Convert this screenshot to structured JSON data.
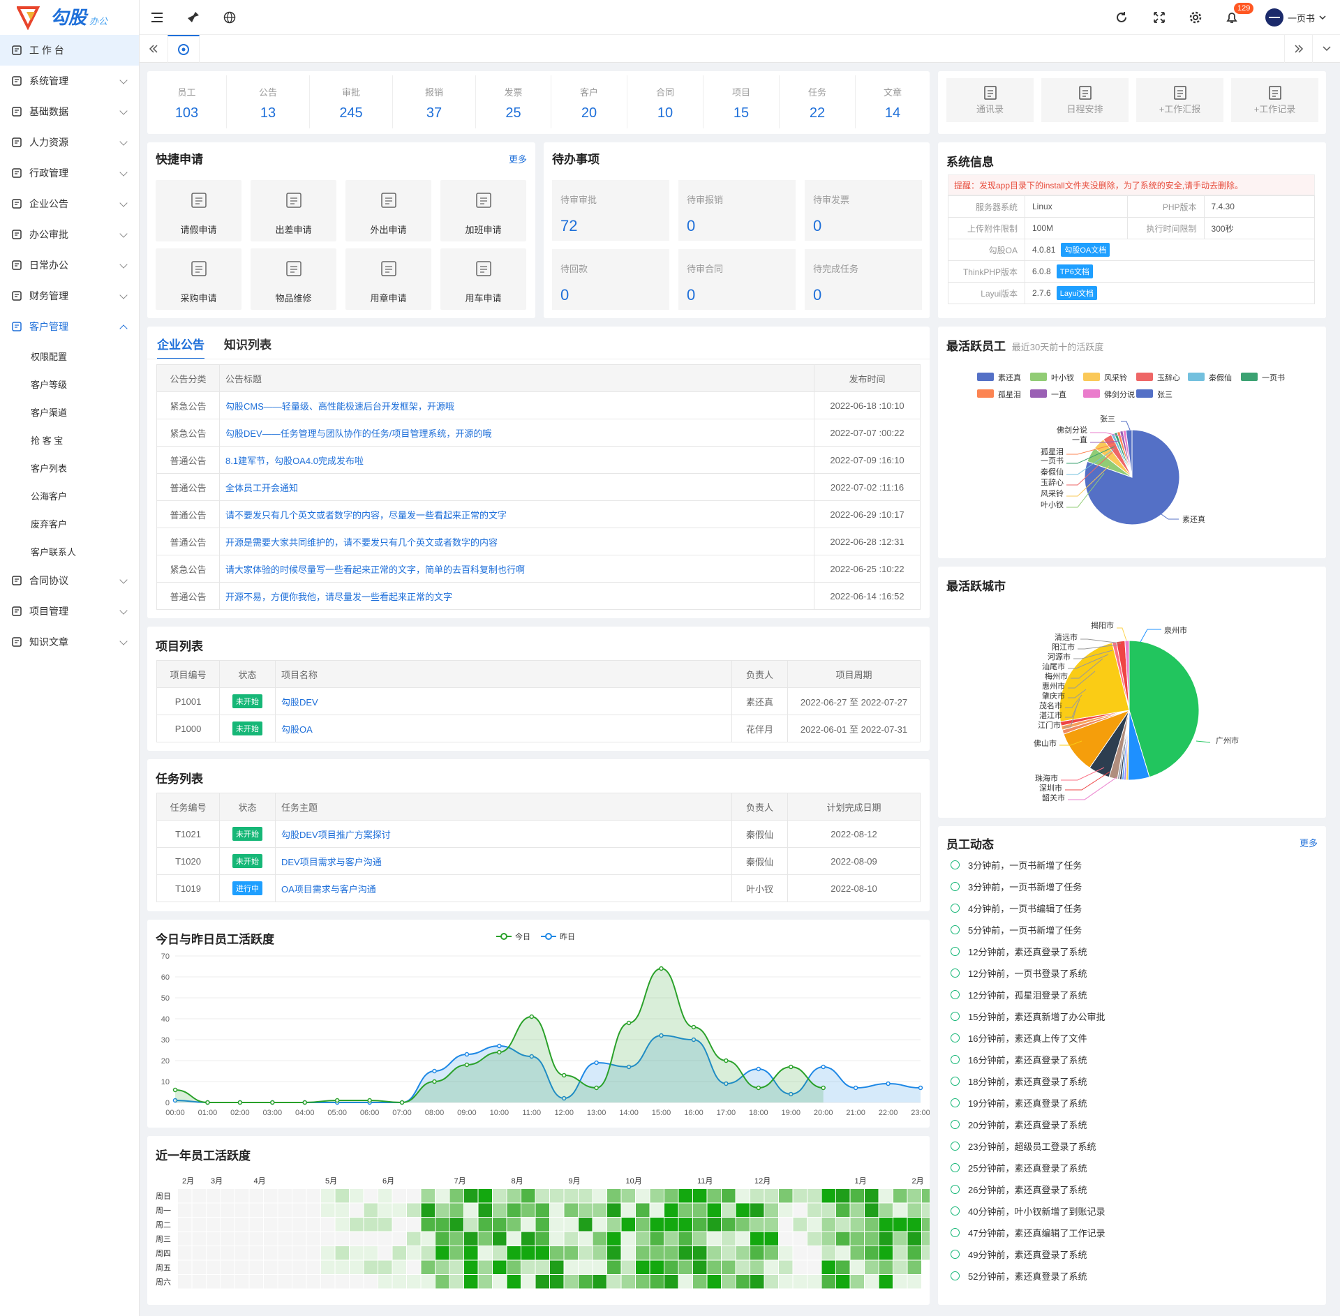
{
  "app": {
    "logo_text": "勾股",
    "logo_sub": "办公",
    "logo_mark": "OA"
  },
  "sidebar": {
    "items": [
      {
        "label": "工 作 台",
        "icon": "dashboard-icon"
      },
      {
        "label": "系统管理",
        "icon": "settings-icon"
      },
      {
        "label": "基础数据",
        "icon": "database-icon"
      },
      {
        "label": "人力资源",
        "icon": "person-icon"
      },
      {
        "label": "行政管理",
        "icon": "flag-icon"
      },
      {
        "label": "企业公告",
        "icon": "bell-icon"
      },
      {
        "label": "办公审批",
        "icon": "approve-icon"
      },
      {
        "label": "日常办公",
        "icon": "calendar-icon"
      },
      {
        "label": "财务管理",
        "icon": "finance-icon"
      },
      {
        "label": "客户管理",
        "icon": "customer-icon"
      },
      {
        "label": "合同协议",
        "icon": "contract-icon"
      },
      {
        "label": "项目管理",
        "icon": "project-icon"
      },
      {
        "label": "知识文章",
        "icon": "article-icon"
      }
    ],
    "submenu": [
      "权限配置",
      "客户等级",
      "客户渠道",
      "抢 客 宝",
      "客户列表",
      "公海客户",
      "废弃客户",
      "客户联系人"
    ]
  },
  "topbar": {
    "badge": "129",
    "user": "一页书"
  },
  "stats": [
    {
      "label": "员工",
      "value": "103"
    },
    {
      "label": "公告",
      "value": "13"
    },
    {
      "label": "审批",
      "value": "245"
    },
    {
      "label": "报销",
      "value": "37"
    },
    {
      "label": "发票",
      "value": "25"
    },
    {
      "label": "客户",
      "value": "20"
    },
    {
      "label": "合同",
      "value": "10"
    },
    {
      "label": "项目",
      "value": "15"
    },
    {
      "label": "任务",
      "value": "22"
    },
    {
      "label": "文章",
      "value": "14"
    }
  ],
  "tools": [
    "通讯录",
    "日程安排",
    "+工作汇报",
    "+工作记录"
  ],
  "quick": {
    "title": "快捷申请",
    "more": "更多",
    "items": [
      "请假申请",
      "出差申请",
      "外出申请",
      "加班申请",
      "采购申请",
      "物品维修",
      "用章申请",
      "用车申请"
    ]
  },
  "todo": {
    "title": "待办事项",
    "items": [
      {
        "label": "待审审批",
        "value": "72"
      },
      {
        "label": "待审报销",
        "value": "0"
      },
      {
        "label": "待审发票",
        "value": "0"
      },
      {
        "label": "待回款",
        "value": "0"
      },
      {
        "label": "待审合同",
        "value": "0"
      },
      {
        "label": "待完成任务",
        "value": "0"
      }
    ]
  },
  "sysinfo": {
    "title": "系统信息",
    "tip": "提醒：发现app目录下的install文件夹没删除，为了系统的安全,请手动去删除。",
    "rows": [
      [
        "服务器系统",
        "Linux",
        "PHP版本",
        "7.4.30"
      ],
      [
        "上传附件限制",
        "100M",
        "执行时间限制",
        "300秒"
      ]
    ],
    "rows2": [
      {
        "k": "勾股OA",
        "v": "4.0.81",
        "tag": "勾股OA文档"
      },
      {
        "k": "ThinkPHP版本",
        "v": "6.0.8",
        "tag": "TP6文档"
      },
      {
        "k": "Layui版本",
        "v": "2.7.6",
        "tag": "Layui文档"
      }
    ]
  },
  "notice": {
    "tab1": "企业公告",
    "tab2": "知识列表",
    "headers": [
      "公告分类",
      "公告标题",
      "发布时间"
    ],
    "rows": [
      [
        "紧急公告",
        "勾股CMS——轻量级、高性能极速后台开发框架，开源哦",
        "2022-06-18 :10:10"
      ],
      [
        "紧急公告",
        "勾股DEV——任务管理与团队协作的任务/项目管理系统，开源的哦",
        "2022-07-07 :00:22"
      ],
      [
        "普通公告",
        "8.1建军节，勾股OA4.0完成发布啦",
        "2022-07-09 :16:10"
      ],
      [
        "普通公告",
        "全体员工开会通知",
        "2022-07-02 :11:16"
      ],
      [
        "普通公告",
        "请不要发只有几个英文或者数字的内容，尽量发一些看起来正常的文字",
        "2022-06-29 :10:17"
      ],
      [
        "普通公告",
        "开源是需要大家共同维护的，请不要发只有几个英文或者数字的内容",
        "2022-06-28 :12:31"
      ],
      [
        "紧急公告",
        "请大家体验的时候尽量写一些看起来正常的文字，简单的去百科复制也行啊",
        "2022-06-25 :10:22"
      ],
      [
        "普通公告",
        "开源不易，方便你我他，请尽量发一些看起来正常的文字",
        "2022-06-14 :16:52"
      ]
    ]
  },
  "projects": {
    "title": "项目列表",
    "headers": [
      "项目编号",
      "状态",
      "项目名称",
      "负责人",
      "项目周期"
    ],
    "rows": [
      [
        "P1001",
        "未开始",
        "勾股DEV",
        "素还真",
        "2022-06-27 至 2022-07-27"
      ],
      [
        "P1000",
        "未开始",
        "勾股OA",
        "花伴月",
        "2022-06-01 至 2022-07-31"
      ]
    ]
  },
  "tasks": {
    "title": "任务列表",
    "headers": [
      "任务编号",
      "状态",
      "任务主题",
      "负责人",
      "计划完成日期"
    ],
    "rows": [
      [
        "T1021",
        "未开始",
        "勾股DEV项目推广方案探讨",
        "秦假仙",
        "2022-08-12"
      ],
      [
        "T1020",
        "未开始",
        "DEV项目需求与客户沟通",
        "秦假仙",
        "2022-08-09"
      ],
      [
        "T1019",
        "进行中",
        "OA项目需求与客户沟通",
        "叶小钗",
        "2022-08-10"
      ]
    ]
  },
  "colors": {
    "accent": "#1e6fd9",
    "green": "#16b777",
    "today": "#2aa12a",
    "yesterday": "#1e88e5"
  },
  "active_emp": {
    "title": "最活跃员工",
    "subtitle": "最近30天前十的活跃度"
  },
  "active_city": {
    "title": "最活跃城市"
  },
  "dynamics": {
    "title": "员工动态",
    "more": "更多",
    "items": [
      "3分钟前，一页书新增了任务",
      "3分钟前，一页书新增了任务",
      "4分钟前，一页书编辑了任务",
      "5分钟前，一页书新增了任务",
      "12分钟前，素还真登录了系统",
      "12分钟前，一页书登录了系统",
      "12分钟前，孤星泪登录了系统",
      "15分钟前，素还真新增了办公审批",
      "16分钟前，素还真上传了文件",
      "16分钟前，素还真登录了系统",
      "18分钟前，素还真登录了系统",
      "19分钟前，素还真登录了系统",
      "20分钟前，素还真登录了系统",
      "23分钟前，超级员工登录了系统",
      "25分钟前，素还真登录了系统",
      "26分钟前，素还真登录了系统",
      "40分钟前，叶小钗新增了到账记录",
      "47分钟前，素还真编辑了工作记录",
      "49分钟前，素还真登录了系统",
      "52分钟前，素还真登录了系统"
    ]
  },
  "chart_data": [
    {
      "type": "pie",
      "title": "最活跃员工",
      "categories": [
        "素还真",
        "叶小钗",
        "风采铃",
        "玉辞心",
        "秦假仙",
        "一页书",
        "孤星泪",
        "一直",
        "佛剑分说",
        "张三"
      ],
      "values": [
        78,
        5,
        4,
        3,
        1,
        1,
        1,
        1,
        1,
        2
      ],
      "colors": [
        "#5470c6",
        "#91cc75",
        "#fac858",
        "#ee6666",
        "#73c0de",
        "#3ba272",
        "#fc8452",
        "#9a60b4",
        "#ea7ccc",
        "#5470c6"
      ],
      "legend": "top"
    },
    {
      "type": "pie",
      "title": "最活跃城市",
      "categories": [
        "广州市",
        "泉州市",
        "揭阳市",
        "清远市",
        "阳江市",
        "河源市",
        "汕尾市",
        "梅州市",
        "惠州市",
        "肇庆市",
        "茂名市",
        "湛江市",
        "江门市",
        "佛山市",
        "珠海市",
        "深圳市",
        "韶关市"
      ],
      "values": [
        46,
        5,
        0.5,
        0.5,
        0.5,
        0.5,
        0.5,
        2,
        5,
        10,
        1,
        1,
        1,
        24,
        1,
        2,
        1
      ],
      "colors": [
        "#22c55e",
        "#1e90ff",
        "#fcd34d",
        "#a78bfa",
        "#60a5fa",
        "#374151",
        "#9ca3af",
        "#b08e7e",
        "#2d3e50",
        "#f59e0b",
        "#ef8a5e",
        "#f5a05b",
        "#ef4444",
        "#facc15",
        "#fb7185",
        "#ef4444",
        "#ea7ccc"
      ]
    },
    {
      "type": "area",
      "title": "今日与昨日员工活跃度",
      "legend": "top",
      "series_names": [
        "今日",
        "昨日"
      ],
      "x": [
        "00:00",
        "01:00",
        "02:00",
        "03:00",
        "04:00",
        "05:00",
        "06:00",
        "07:00",
        "08:00",
        "09:00",
        "10:00",
        "11:00",
        "12:00",
        "13:00",
        "14:00",
        "15:00",
        "16:00",
        "17:00",
        "18:00",
        "19:00",
        "20:00",
        "21:00",
        "22:00",
        "23:00"
      ],
      "ylim": [
        0,
        70
      ],
      "yticks": [
        0,
        10,
        20,
        30,
        40,
        50,
        60,
        70
      ],
      "series": [
        {
          "name": "今日",
          "values": [
            6,
            0,
            0,
            0,
            0,
            1,
            1,
            0,
            10,
            18,
            24,
            41,
            13,
            7,
            38,
            64,
            36,
            20,
            7,
            17,
            7,
            null,
            null,
            null
          ]
        },
        {
          "name": "昨日",
          "values": [
            1,
            0,
            0,
            0,
            0,
            0,
            0,
            0,
            15,
            23,
            27,
            22,
            2,
            19,
            17,
            32,
            30,
            9,
            16,
            4,
            17,
            7,
            9,
            7
          ]
        }
      ]
    },
    {
      "type": "heatmap",
      "title": "近一年员工活跃度",
      "months": [
        "2月",
        "3月",
        "4月",
        "5月",
        "6月",
        "7月",
        "8月",
        "9月",
        "10月",
        "11月",
        "12月",
        "1月",
        "2月"
      ],
      "weekdays": [
        "周日",
        "周一",
        "周二",
        "周三",
        "周四",
        "周五",
        "周六"
      ]
    }
  ]
}
